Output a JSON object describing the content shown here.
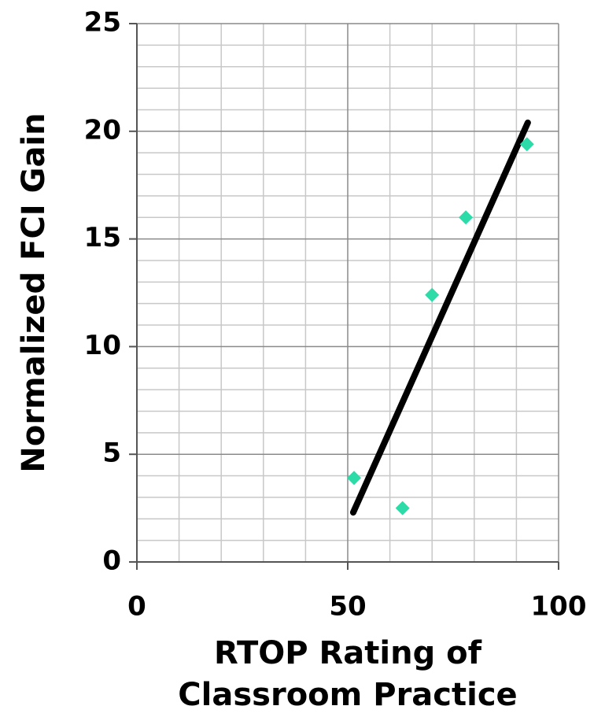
{
  "chart_data": {
    "type": "scatter",
    "xlabel": [
      "RTOP Rating of",
      "Classroom Practice"
    ],
    "ylabel": "Normalized FCI Gain",
    "series": [
      {
        "color": "#2ddba8",
        "x": [
          51.5,
          63,
          70,
          78,
          92.5
        ],
        "values": [
          3.9,
          2.5,
          12.4,
          16,
          19.4
        ]
      }
    ],
    "trendline": {
      "color": "#000000",
      "x": [
        51.3,
        92.7
      ],
      "values": [
        2.3,
        20.4
      ]
    },
    "xlim": [
      0,
      100
    ],
    "ylim": [
      0,
      25
    ],
    "xticks": [
      0,
      50,
      100
    ],
    "yticks": [
      0,
      5,
      10,
      15,
      20,
      25
    ],
    "grid": true,
    "x_minor_grid": [
      10,
      20,
      30,
      40,
      60,
      70,
      80,
      90
    ],
    "y_minor_grid": [
      1,
      2,
      3,
      4,
      6,
      7,
      8,
      9,
      11,
      12,
      13,
      14,
      16,
      17,
      18,
      19,
      21,
      22,
      23,
      24
    ]
  }
}
